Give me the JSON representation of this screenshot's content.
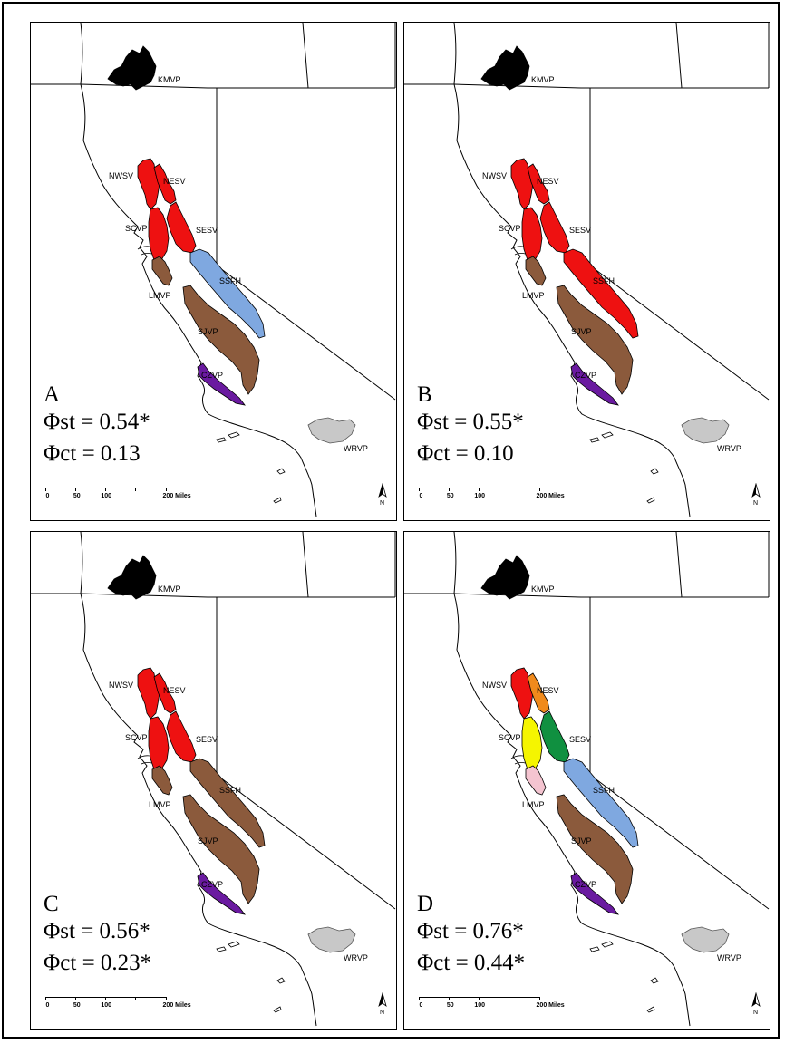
{
  "colors": {
    "red": "#ee1111",
    "black": "#000000",
    "brown": "#8b5a3c",
    "blue": "#7fa8e0",
    "purple": "#6a1aa0",
    "gray": "#c8c8c8",
    "orange": "#f08a1c",
    "yellow": "#f5f500",
    "green": "#109040",
    "pink": "#f4c4d0"
  },
  "region_labels": {
    "kmvp": "KMVP",
    "nwsv": "NWSV",
    "nesv": "NESV",
    "scvp": "SCVP",
    "sesv": "SESV",
    "lmvp": "LMVP",
    "ssfh": "SSFH",
    "sjvp": "SJVP",
    "czvp": "CZVP",
    "wrvp": "WRVP"
  },
  "scale_bar": {
    "ticks": [
      "0",
      "50",
      "100",
      "200 Miles"
    ]
  },
  "north_label": "N",
  "panels": [
    {
      "letter": "A",
      "phi_st": "Φst = 0.54*",
      "phi_ct": "Φct = 0.13",
      "fills": {
        "nwsv": "red",
        "nesv": "red",
        "scvp": "red",
        "sesv": "red",
        "ssfh": "blue",
        "lmvp": "brown",
        "sjvp": "brown",
        "czvp": "purple",
        "kmvp": "black",
        "wrvp": "gray"
      }
    },
    {
      "letter": "B",
      "phi_st": "Φst = 0.55*",
      "phi_ct": "Φct = 0.10",
      "fills": {
        "nwsv": "red",
        "nesv": "red",
        "scvp": "red",
        "sesv": "red",
        "ssfh": "red",
        "lmvp": "brown",
        "sjvp": "brown",
        "czvp": "purple",
        "kmvp": "black",
        "wrvp": "gray"
      }
    },
    {
      "letter": "C",
      "phi_st": "Φst = 0.56*",
      "phi_ct": "Φct = 0.23*",
      "fills": {
        "nwsv": "red",
        "nesv": "red",
        "scvp": "red",
        "sesv": "red",
        "ssfh": "brown",
        "lmvp": "brown",
        "sjvp": "brown",
        "czvp": "purple",
        "kmvp": "black",
        "wrvp": "gray"
      }
    },
    {
      "letter": "D",
      "phi_st": "Φst = 0.76*",
      "phi_ct": "Φct = 0.44*",
      "fills": {
        "nwsv": "red",
        "nesv": "orange",
        "scvp": "yellow",
        "sesv": "green",
        "ssfh": "blue",
        "lmvp": "pink",
        "sjvp": "brown",
        "czvp": "purple",
        "kmvp": "black",
        "wrvp": "gray"
      }
    }
  ]
}
